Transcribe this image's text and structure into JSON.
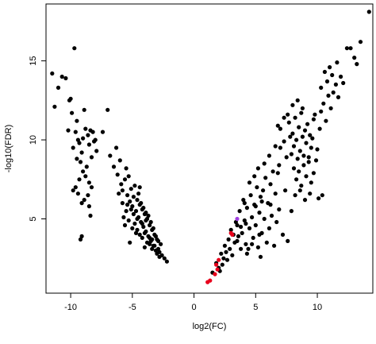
{
  "chart_data": {
    "type": "scatter",
    "title": "",
    "xlabel": "log2(FC)",
    "ylabel": "-log10(FDR)",
    "xlim": [
      -12,
      14.5
    ],
    "ylim": [
      0.3,
      18.6
    ],
    "xticks": [
      -10,
      -5,
      0,
      5,
      10
    ],
    "yticks": [
      5,
      10,
      15
    ],
    "xtick_labels": [
      "-10",
      "-5",
      "0",
      "5",
      "10"
    ],
    "ytick_labels": [
      "5",
      "10",
      "15"
    ],
    "grid": false,
    "legend": "none",
    "colors": {
      "default": "#000000",
      "highlight_red": "#e8001c",
      "highlight_purple": "#a040e0"
    },
    "series": [
      {
        "color": "#000000",
        "points": [
          [
            -11.5,
            14.2
          ],
          [
            -11.3,
            12.1
          ],
          [
            -11.0,
            13.3
          ],
          [
            -10.7,
            14.0
          ],
          [
            -10.4,
            13.9
          ],
          [
            -10.1,
            12.5
          ],
          [
            -10.0,
            12.6
          ],
          [
            -9.9,
            11.7
          ],
          [
            -10.2,
            10.6
          ],
          [
            -9.7,
            15.8
          ],
          [
            -9.5,
            11.2
          ],
          [
            -9.6,
            10.5
          ],
          [
            -9.4,
            10.0
          ],
          [
            -9.8,
            9.5
          ],
          [
            -9.3,
            9.8
          ],
          [
            -9.1,
            9.2
          ],
          [
            -9.0,
            10.1
          ],
          [
            -8.9,
            11.9
          ],
          [
            -8.8,
            10.7
          ],
          [
            -8.6,
            10.3
          ],
          [
            -8.5,
            9.7
          ],
          [
            -8.4,
            10.6
          ],
          [
            -8.3,
            8.9
          ],
          [
            -8.1,
            9.9
          ],
          [
            -8.2,
            10.5
          ],
          [
            -9.2,
            8.6
          ],
          [
            -9.5,
            8.8
          ],
          [
            -8.7,
            8.3
          ],
          [
            -9.0,
            8.0
          ],
          [
            -8.8,
            7.7
          ],
          [
            -8.5,
            7.3
          ],
          [
            -8.3,
            7.0
          ],
          [
            -8.6,
            6.5
          ],
          [
            -8.9,
            6.2
          ],
          [
            -9.3,
            7.5
          ],
          [
            -9.6,
            7.0
          ],
          [
            -9.8,
            6.8
          ],
          [
            -9.4,
            6.6
          ],
          [
            -9.1,
            6.0
          ],
          [
            -8.5,
            5.8
          ],
          [
            -8.4,
            5.2
          ],
          [
            -8.0,
            10.0
          ],
          [
            -7.9,
            9.3
          ],
          [
            -9.2,
            3.7
          ],
          [
            -9.1,
            3.9
          ],
          [
            -7.4,
            10.5
          ],
          [
            -7.0,
            11.9
          ],
          [
            -6.8,
            9.0
          ],
          [
            -6.5,
            8.3
          ],
          [
            -6.3,
            9.5
          ],
          [
            -6.2,
            7.8
          ],
          [
            -6.0,
            8.7
          ],
          [
            -5.9,
            7.2
          ],
          [
            -5.8,
            6.8
          ],
          [
            -5.6,
            7.5
          ],
          [
            -5.5,
            8.2
          ],
          [
            -5.4,
            6.5
          ],
          [
            -5.3,
            7.7
          ],
          [
            -5.2,
            6.1
          ],
          [
            -5.1,
            6.9
          ],
          [
            -5.0,
            5.8
          ],
          [
            -4.9,
            6.4
          ],
          [
            -4.8,
            7.1
          ],
          [
            -4.7,
            5.5
          ],
          [
            -4.6,
            6.2
          ],
          [
            -4.5,
            5.1
          ],
          [
            -4.4,
            5.9
          ],
          [
            -4.3,
            4.8
          ],
          [
            -4.2,
            5.6
          ],
          [
            -4.1,
            4.5
          ],
          [
            -4.0,
            5.3
          ],
          [
            -3.9,
            4.2
          ],
          [
            -3.8,
            5.0
          ],
          [
            -3.7,
            3.9
          ],
          [
            -3.6,
            4.6
          ],
          [
            -3.5,
            3.6
          ],
          [
            -3.4,
            4.3
          ],
          [
            -3.3,
            3.3
          ],
          [
            -3.2,
            4.0
          ],
          [
            -3.1,
            3.0
          ],
          [
            -3.0,
            3.7
          ],
          [
            -2.9,
            3.1
          ],
          [
            -2.8,
            2.9
          ],
          [
            -2.7,
            3.4
          ],
          [
            -2.6,
            2.7
          ],
          [
            -2.4,
            2.5
          ],
          [
            -2.2,
            2.3
          ],
          [
            -5.7,
            5.1
          ],
          [
            -5.5,
            5.5
          ],
          [
            -5.3,
            4.9
          ],
          [
            -5.0,
            4.4
          ],
          [
            -4.8,
            4.7
          ],
          [
            -4.6,
            4.3
          ],
          [
            -4.4,
            4.0
          ],
          [
            -4.2,
            3.8
          ],
          [
            -4.0,
            4.1
          ],
          [
            -3.8,
            3.5
          ],
          [
            -3.6,
            3.4
          ],
          [
            -3.4,
            3.1
          ],
          [
            -3.2,
            3.3
          ],
          [
            -3.0,
            2.8
          ],
          [
            -2.8,
            2.6
          ],
          [
            -4.5,
            6.6
          ],
          [
            -4.3,
            6.0
          ],
          [
            -4.1,
            5.7
          ],
          [
            -3.9,
            5.4
          ],
          [
            -3.7,
            5.2
          ],
          [
            -4.9,
            5.3
          ],
          [
            -5.1,
            5.6
          ],
          [
            -5.6,
            4.6
          ],
          [
            -4.7,
            4.1
          ],
          [
            -3.5,
            4.8
          ],
          [
            -3.3,
            4.4
          ],
          [
            -3.1,
            3.9
          ],
          [
            -2.9,
            3.6
          ],
          [
            -4.4,
            7.0
          ],
          [
            -5.2,
            3.5
          ],
          [
            -4.0,
            3.2
          ],
          [
            -3.6,
            3.8
          ],
          [
            -3.9,
            4.9
          ],
          [
            -4.6,
            5.0
          ],
          [
            -5.8,
            6.0
          ],
          [
            -6.1,
            6.6
          ],
          [
            -5.4,
            5.9
          ],
          [
            -4.2,
            4.7
          ],
          [
            -3.4,
            3.7
          ],
          [
            1.5,
            1.6
          ],
          [
            1.8,
            2.2
          ],
          [
            2.0,
            1.9
          ],
          [
            2.2,
            2.8
          ],
          [
            2.4,
            2.5
          ],
          [
            2.5,
            3.3
          ],
          [
            2.6,
            2.9
          ],
          [
            2.8,
            3.7
          ],
          [
            2.9,
            3.1
          ],
          [
            3.0,
            4.3
          ],
          [
            3.2,
            4.0
          ],
          [
            3.4,
            4.8
          ],
          [
            3.5,
            3.6
          ],
          [
            3.7,
            5.5
          ],
          [
            3.8,
            4.5
          ],
          [
            4.0,
            6.2
          ],
          [
            4.1,
            4.9
          ],
          [
            4.2,
            3.4
          ],
          [
            4.3,
            5.7
          ],
          [
            4.4,
            3.1
          ],
          [
            4.5,
            4.4
          ],
          [
            4.6,
            6.5
          ],
          [
            4.7,
            5.1
          ],
          [
            4.8,
            3.8
          ],
          [
            4.9,
            5.9
          ],
          [
            5.0,
            4.6
          ],
          [
            5.1,
            7.0
          ],
          [
            5.2,
            3.2
          ],
          [
            5.3,
            5.4
          ],
          [
            5.4,
            6.4
          ],
          [
            5.5,
            4.1
          ],
          [
            5.6,
            6.8
          ],
          [
            5.7,
            5.0
          ],
          [
            5.8,
            7.6
          ],
          [
            5.9,
            3.5
          ],
          [
            6.0,
            6.0
          ],
          [
            6.1,
            4.4
          ],
          [
            6.2,
            7.2
          ],
          [
            6.3,
            5.2
          ],
          [
            6.4,
            8.0
          ],
          [
            6.5,
            3.3
          ],
          [
            6.6,
            6.6
          ],
          [
            6.7,
            4.8
          ],
          [
            6.8,
            7.9
          ],
          [
            6.9,
            5.6
          ],
          [
            7.0,
            9.5
          ],
          [
            7.2,
            4.0
          ],
          [
            7.4,
            6.8
          ],
          [
            7.5,
            8.9
          ],
          [
            7.6,
            3.6
          ],
          [
            7.8,
            10.2
          ],
          [
            7.9,
            5.5
          ],
          [
            3.3,
            3.5
          ],
          [
            3.6,
            3.9
          ],
          [
            3.9,
            4.1
          ],
          [
            4.2,
            4.7
          ],
          [
            2.7,
            2.4
          ],
          [
            3.1,
            2.7
          ],
          [
            3.5,
            4.6
          ],
          [
            4.1,
            6.0
          ],
          [
            4.5,
            7.3
          ],
          [
            4.9,
            7.7
          ],
          [
            5.2,
            8.2
          ],
          [
            5.7,
            8.5
          ],
          [
            6.1,
            9.0
          ],
          [
            6.6,
            9.6
          ],
          [
            6.9,
            8.4
          ],
          [
            7.3,
            9.9
          ],
          [
            2.1,
            1.7
          ],
          [
            2.3,
            2.1
          ],
          [
            3.8,
            3.1
          ],
          [
            4.3,
            2.8
          ],
          [
            4.7,
            3.4
          ],
          [
            5.4,
            2.6
          ],
          [
            5.0,
            5.8
          ],
          [
            5.5,
            6.1
          ],
          [
            6.2,
            5.9
          ],
          [
            5.3,
            4.0
          ],
          [
            7.7,
            11.1
          ],
          [
            7.9,
            9.1
          ],
          [
            8.0,
            10.4
          ],
          [
            8.1,
            9.6
          ],
          [
            8.2,
            11.4
          ],
          [
            8.3,
            10.0
          ],
          [
            8.4,
            8.8
          ],
          [
            8.5,
            10.8
          ],
          [
            8.6,
            9.3
          ],
          [
            8.7,
            11.7
          ],
          [
            8.8,
            10.2
          ],
          [
            8.9,
            9.0
          ],
          [
            9.0,
            10.6
          ],
          [
            9.1,
            9.8
          ],
          [
            9.2,
            11.0
          ],
          [
            9.3,
            8.6
          ],
          [
            9.4,
            10.3
          ],
          [
            9.5,
            9.5
          ],
          [
            8.1,
            8.2
          ],
          [
            8.3,
            7.5
          ],
          [
            8.5,
            8.0
          ],
          [
            8.7,
            7.1
          ],
          [
            8.9,
            8.4
          ],
          [
            9.1,
            7.7
          ],
          [
            9.3,
            8.9
          ],
          [
            9.5,
            7.3
          ],
          [
            8.2,
            6.5
          ],
          [
            8.6,
            6.8
          ],
          [
            9.0,
            6.2
          ],
          [
            9.4,
            6.6
          ],
          [
            9.7,
            7.9
          ],
          [
            9.9,
            8.7
          ],
          [
            10.0,
            9.4
          ],
          [
            10.2,
            10.7
          ],
          [
            10.3,
            11.8
          ],
          [
            10.5,
            12.3
          ],
          [
            10.7,
            11.2
          ],
          [
            10.9,
            12.8
          ],
          [
            11.1,
            12.0
          ],
          [
            11.3,
            13.0
          ],
          [
            11.5,
            13.5
          ],
          [
            11.7,
            12.7
          ],
          [
            11.9,
            14.0
          ],
          [
            12.1,
            13.6
          ],
          [
            12.4,
            15.8
          ],
          [
            12.7,
            15.8
          ],
          [
            13.0,
            15.2
          ],
          [
            13.2,
            14.8
          ],
          [
            13.5,
            16.2
          ],
          [
            14.2,
            18.1
          ],
          [
            10.1,
            6.3
          ],
          [
            10.4,
            6.5
          ],
          [
            9.8,
            11.6
          ],
          [
            10.6,
            14.3
          ],
          [
            10.8,
            13.7
          ],
          [
            11.0,
            14.6
          ],
          [
            11.2,
            14.1
          ],
          [
            11.6,
            14.9
          ],
          [
            10.3,
            13.3
          ],
          [
            9.6,
            10.1
          ],
          [
            9.7,
            11.3
          ],
          [
            8.0,
            12.2
          ],
          [
            7.6,
            11.6
          ],
          [
            8.4,
            12.5
          ],
          [
            8.8,
            12.0
          ],
          [
            7.0,
            10.7
          ],
          [
            6.8,
            10.9
          ],
          [
            7.3,
            11.4
          ]
        ]
      },
      {
        "color": "#e8001c",
        "points": [
          [
            1.1,
            1.0
          ],
          [
            1.3,
            1.1
          ],
          [
            1.7,
            1.5
          ],
          [
            1.9,
            1.8
          ],
          [
            1.8,
            2.1
          ],
          [
            2.0,
            2.4
          ],
          [
            3.1,
            4.0
          ],
          [
            3.0,
            4.1
          ]
        ]
      },
      {
        "color": "#a040e0",
        "points": [
          [
            3.5,
            5.0
          ]
        ]
      }
    ]
  }
}
